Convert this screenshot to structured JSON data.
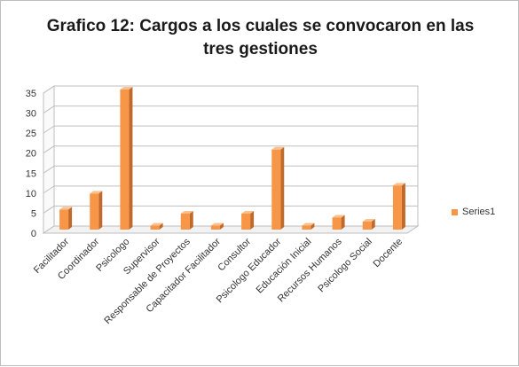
{
  "chart_data": {
    "type": "bar",
    "title_line1": "Grafico 12: Cargos a los cuales se convocaron en las",
    "title_line2": "tres  gestiones",
    "categories": [
      "Facilitador",
      "Coordinador",
      "Psicologo",
      "Supervisor",
      "Responsable de Proyectos",
      "Capacitador Facilitador",
      "Consultor",
      "Psicologo Educador",
      "Educación Inicial",
      "Recursos Humanos",
      "Psicologo Social",
      "Docente"
    ],
    "series": [
      {
        "name": "Series1",
        "values": [
          5,
          9,
          35,
          1,
          4,
          1,
          4,
          20,
          1,
          3,
          2,
          11
        ],
        "color": "#f79646"
      }
    ],
    "y_ticks": [
      "0",
      "5",
      "10",
      "15",
      "20",
      "25",
      "30",
      "35"
    ],
    "ylim": [
      0,
      35
    ],
    "grid": true,
    "legend_position": "right",
    "style": "3d-column"
  }
}
